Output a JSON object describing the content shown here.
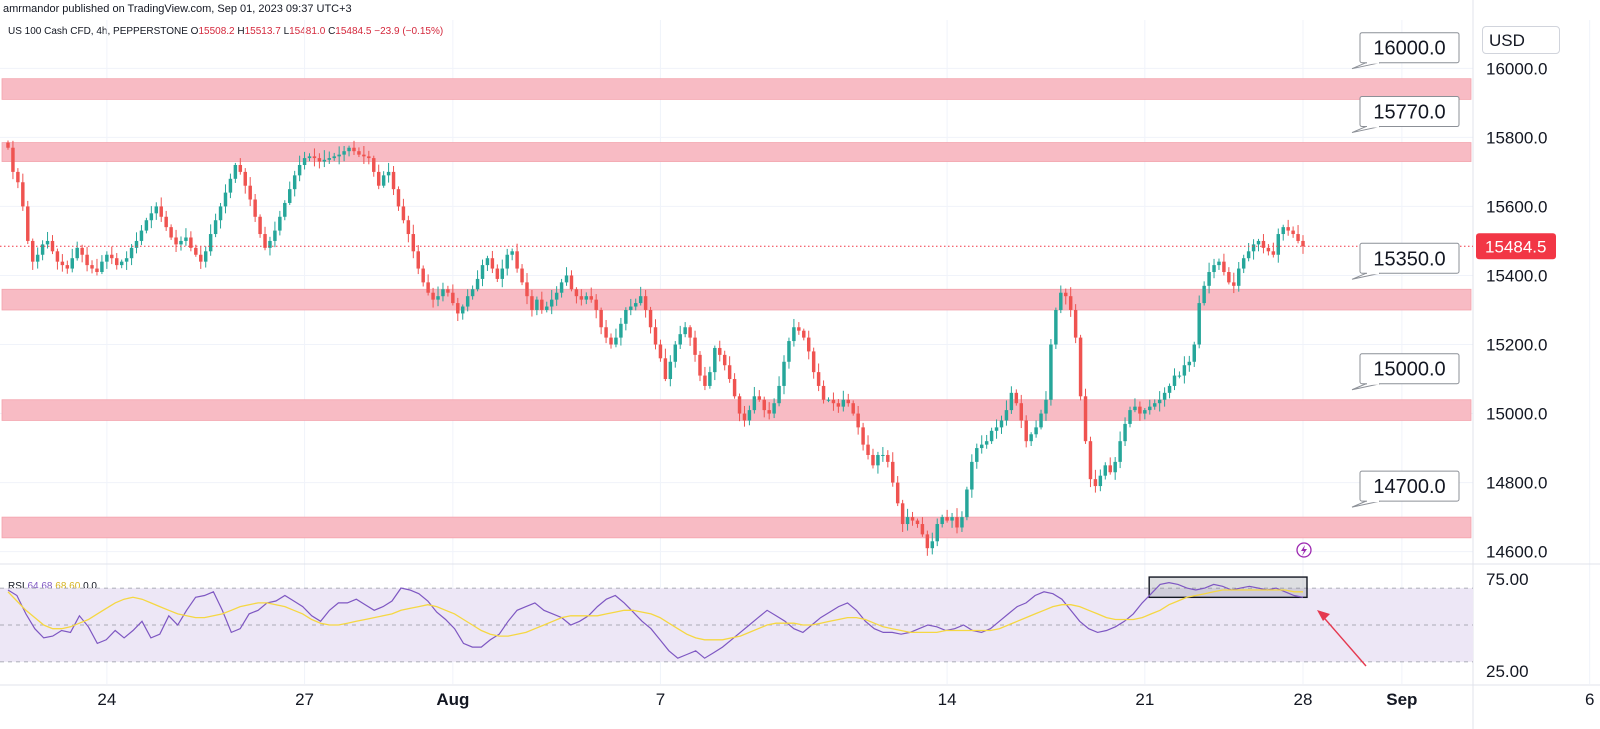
{
  "publisher": "amrmandor published on TradingView.com, Sep 01, 2023 09:37 UTC+3",
  "header": {
    "symbol": "US 100 Cash CFD, 4h, PEPPERSTONE",
    "open_label": "O",
    "open": "15508.2",
    "high_label": "H",
    "high": "15513.7",
    "low_label": "L",
    "low": "15481.0",
    "close_label": "C",
    "close": "15484.5",
    "change": "−23.9 (−0.15%)"
  },
  "currency": "USD",
  "colors": {
    "up": "#26a69a",
    "down": "#ef5350",
    "zone": "#f8bbc4",
    "rsi": "#7e57c2",
    "rsi_ma": "#f5d742",
    "rsi_band": "#ede7f6",
    "price_tag": "#f23645",
    "arrow": "#e53950"
  },
  "chart_data": [
    {
      "type": "candlestick",
      "y_ticks": [
        "16000.0",
        "15800.0",
        "15600.0",
        "15400.0",
        "15200.0",
        "15000.0",
        "14800.0",
        "14600.0"
      ],
      "ylim": [
        14570,
        16140
      ],
      "x_ticks": [
        "24",
        "27",
        "Aug",
        "7",
        "14",
        "21",
        "28",
        "Sep",
        "6"
      ],
      "last_price": "15484.5",
      "levels": [
        {
          "label": "16000.0",
          "low": 15910,
          "high": 15970
        },
        {
          "label": "15770.0",
          "low": 15730,
          "high": 15785
        },
        {
          "label": "15350.0",
          "low": 15300,
          "high": 15360
        },
        {
          "label": "15000.0",
          "low": 14980,
          "high": 15040
        },
        {
          "label": "14700.0",
          "low": 14640,
          "high": 14700
        }
      ],
      "close_series": [
        15770,
        15700,
        15670,
        15600,
        15500,
        15440,
        15460,
        15490,
        15500,
        15470,
        15440,
        15430,
        15420,
        15450,
        15480,
        15460,
        15430,
        15420,
        15410,
        15440,
        15460,
        15450,
        15430,
        15440,
        15450,
        15480,
        15500,
        15530,
        15560,
        15580,
        15600,
        15570,
        15540,
        15510,
        15490,
        15500,
        15510,
        15480,
        15460,
        15440,
        15470,
        15520,
        15560,
        15600,
        15640,
        15680,
        15720,
        15700,
        15660,
        15620,
        15570,
        15520,
        15480,
        15500,
        15530,
        15570,
        15610,
        15650,
        15690,
        15720,
        15740,
        15745,
        15740,
        15730,
        15735,
        15740,
        15745,
        15750,
        15760,
        15770,
        15760,
        15750,
        15745,
        15740,
        15700,
        15660,
        15690,
        15700,
        15650,
        15600,
        15560,
        15520,
        15470,
        15420,
        15380,
        15350,
        15330,
        15340,
        15360,
        15350,
        15320,
        15290,
        15310,
        15340,
        15360,
        15390,
        15430,
        15450,
        15420,
        15390,
        15420,
        15460,
        15470,
        15420,
        15380,
        15340,
        15300,
        15330,
        15300,
        15310,
        15330,
        15350,
        15380,
        15400,
        15360,
        15340,
        15330,
        15340,
        15330,
        15300,
        15250,
        15220,
        15200,
        15220,
        15260,
        15300,
        15310,
        15320,
        15340,
        15300,
        15250,
        15200,
        15160,
        15100,
        15150,
        15200,
        15230,
        15250,
        15220,
        15170,
        15110,
        15080,
        15120,
        15190,
        15170,
        15140,
        15100,
        15050,
        15000,
        14980,
        15010,
        15050,
        15040,
        15010,
        15000,
        15030,
        15080,
        15150,
        15210,
        15250,
        15240,
        15220,
        15180,
        15120,
        15080,
        15040,
        15040,
        15030,
        15020,
        15040,
        15030,
        15000,
        14960,
        14910,
        14880,
        14850,
        14880,
        14880,
        14860,
        14800,
        14740,
        14680,
        14700,
        14690,
        14680,
        14650,
        14610,
        14630,
        14680,
        14700,
        14690,
        14700,
        14670,
        14700,
        14780,
        14860,
        14900,
        14910,
        14920,
        14950,
        14960,
        14980,
        15010,
        15060,
        15030,
        14980,
        14920,
        14940,
        14960,
        15000,
        15040,
        15200,
        15300,
        15350,
        15340,
        15300,
        15220,
        15050,
        14920,
        14810,
        14790,
        14820,
        14850,
        14830,
        14860,
        14920,
        14970,
        15010,
        15020,
        15000,
        15010,
        15020,
        15030,
        15040,
        15060,
        15080,
        15110,
        15110,
        15140,
        15150,
        15200,
        15320,
        15370,
        15410,
        15430,
        15440,
        15410,
        15380,
        15370,
        15420,
        15450,
        15470,
        15490,
        15500,
        15480,
        15470,
        15460,
        15520,
        15540,
        15530,
        15520,
        15500,
        15484.5
      ]
    },
    {
      "type": "line",
      "title": "RSI",
      "rsi_value": "64.68",
      "rsi_ma_value": "68.60",
      "extra_values": [
        "0",
        "0"
      ],
      "y_ticks": [
        "75.00",
        "25.00"
      ],
      "ylim": [
        18,
        82
      ],
      "bands": [
        30,
        50,
        70
      ],
      "series": [
        {
          "name": "RSI",
          "values": [
            69,
            66,
            56,
            48,
            43,
            44,
            47,
            46,
            55,
            49,
            40,
            42,
            47,
            43,
            47,
            52,
            43,
            45,
            55,
            50,
            58,
            65,
            66,
            68,
            58,
            46,
            48,
            56,
            58,
            62,
            63,
            66,
            63,
            60,
            55,
            52,
            58,
            62,
            62,
            64,
            61,
            58,
            60,
            63,
            70,
            69,
            67,
            63,
            57,
            53,
            48,
            40,
            38,
            38,
            42,
            45,
            52,
            58,
            60,
            62,
            58,
            56,
            54,
            50,
            52,
            55,
            60,
            64,
            66,
            62,
            57,
            52,
            48,
            42,
            36,
            32,
            34,
            36,
            32,
            35,
            38,
            42,
            46,
            50,
            54,
            58,
            55,
            52,
            48,
            46,
            50,
            54,
            57,
            60,
            62,
            58,
            52,
            48,
            46,
            46,
            45,
            46,
            48,
            50,
            49,
            47,
            48,
            50,
            47,
            46,
            48,
            52,
            56,
            60,
            62,
            66,
            68,
            67,
            64,
            58,
            52,
            48,
            46,
            47,
            49,
            52,
            56,
            62,
            67,
            72,
            73,
            72,
            70,
            69,
            70,
            72,
            71,
            69,
            70,
            71,
            70,
            69,
            70,
            68,
            66,
            65
          ]
        },
        {
          "name": "RSI MA",
          "values": [
            68,
            63,
            58,
            54,
            50,
            48,
            48,
            49,
            51,
            53,
            56,
            59,
            62,
            64,
            65,
            64,
            62,
            60,
            58,
            56,
            55,
            54,
            54,
            55,
            56,
            58,
            60,
            61,
            62,
            62,
            61,
            60,
            58,
            56,
            53,
            51,
            50,
            50,
            51,
            52,
            53,
            54,
            55,
            56,
            58,
            59,
            60,
            61,
            60,
            58,
            56,
            53,
            50,
            47,
            45,
            44,
            44,
            45,
            46,
            48,
            50,
            52,
            54,
            55,
            55,
            55,
            55,
            56,
            57,
            58,
            58,
            57,
            56,
            54,
            51,
            48,
            45,
            43,
            42,
            42,
            42,
            43,
            44,
            46,
            48,
            50,
            51,
            51,
            51,
            50,
            50,
            51,
            52,
            53,
            54,
            54,
            53,
            51,
            49,
            48,
            47,
            46,
            46,
            46,
            46,
            47,
            47,
            47,
            47,
            47,
            47,
            48,
            50,
            52,
            54,
            56,
            58,
            60,
            61,
            61,
            60,
            58,
            56,
            54,
            53,
            53,
            53,
            54,
            56,
            58,
            61,
            63,
            65,
            66,
            67,
            68,
            69,
            69,
            69,
            69,
            69,
            69,
            69,
            69,
            68,
            68
          ]
        }
      ],
      "highlight": {
        "from_index": 128,
        "to_index": 145
      }
    }
  ]
}
